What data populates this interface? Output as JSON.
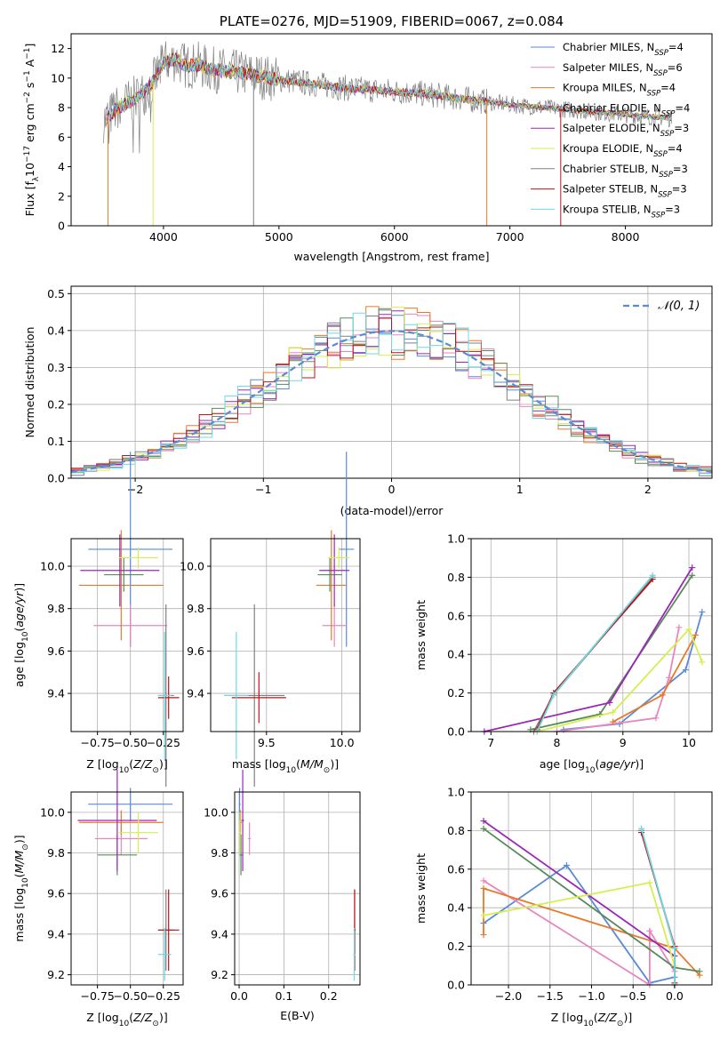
{
  "colors": {
    "blue": "#5b8ad6",
    "pink": "#e886c0",
    "orange": "#e8792b",
    "green": "#5a8a5a",
    "purple": "#9b27b8",
    "lime": "#d6ee4f",
    "gray": "#808080",
    "red": "#b8151b",
    "cyan": "#6fd8e0"
  },
  "chart_data": [
    {
      "type": "line",
      "title": "PLATE=0276, MJD=51909, FIBERID=0067, z=0.084",
      "xlabel": "wavelength [Angstrom, rest frame]",
      "ylabel": "Flux [f_λ 10^-17 erg cm^-2 s^-1 A^-1]",
      "xlim": [
        3200,
        8750
      ],
      "ylim": [
        0,
        13
      ],
      "xticks": [
        4000,
        5000,
        6000,
        7000,
        8000
      ],
      "yticks": [
        0,
        2,
        4,
        6,
        8,
        10,
        12
      ],
      "grid": false,
      "legend_position": "upper-right",
      "legend": [
        {
          "base": "Chabrier MILES, N",
          "n": "4",
          "color_key": "blue"
        },
        {
          "base": "Salpeter MILES, N",
          "n": "6",
          "color_key": "pink"
        },
        {
          "base": "Kroupa MILES, N",
          "n": "4",
          "color_key": "orange"
        },
        {
          "base": "Chabrier ELODIE, N",
          "n": "4",
          "color_key": "green"
        },
        {
          "base": "Salpeter ELODIE, N",
          "n": "3",
          "color_key": "purple"
        },
        {
          "base": "Kroupa ELODIE, N",
          "n": "4",
          "color_key": "lime"
        },
        {
          "base": "Chabrier STELIB, N",
          "n": "3",
          "color_key": "gray"
        },
        {
          "base": "Salpeter STELIB, N",
          "n": "3",
          "color_key": "red"
        },
        {
          "base": "Kroupa STELIB, N",
          "n": "3",
          "color_key": "cyan"
        }
      ],
      "legend_sub": "SSP",
      "continuum": {
        "x": [
          3500,
          3600,
          3700,
          3800,
          3900,
          4000,
          4100,
          4200,
          4300,
          4400,
          4500,
          4700,
          5000,
          5300,
          5600,
          6000,
          6300,
          6600,
          6800,
          7000,
          7300,
          7600,
          7900,
          8200,
          8500
        ],
        "y": [
          7.2,
          8.0,
          8.4,
          8.8,
          9.6,
          11.0,
          11.3,
          10.8,
          10.9,
          10.6,
          10.5,
          10.3,
          9.9,
          9.6,
          9.3,
          9.1,
          8.9,
          8.6,
          8.4,
          8.2,
          8.0,
          7.8,
          7.6,
          7.4,
          7.2
        ]
      }
    },
    {
      "type": "histogram",
      "xlabel": "(data-model)/error",
      "ylabel": "Normed distribution",
      "xlim": [
        -2.5,
        2.5
      ],
      "ylim": [
        0,
        0.52
      ],
      "xticks": [
        -2,
        -1,
        0,
        1,
        2
      ],
      "yticks": [
        0.0,
        0.1,
        0.2,
        0.3,
        0.4,
        0.5
      ],
      "grid": true,
      "legend_position": "upper-right",
      "legend_label": "𝒩(0, 1)",
      "reference_curve": "standard normal, dashed",
      "bins": [
        -2.5,
        2.5,
        50
      ]
    },
    {
      "type": "scatter",
      "xlabel": "Z [log10(Z/Z⊙)]",
      "ylabel": "age  [log10(age/yr)]",
      "xlim": [
        -0.95,
        -0.1
      ],
      "ylim": [
        9.22,
        10.13
      ],
      "xticks": [
        -0.75,
        -0.5,
        -0.25
      ],
      "yticks": [
        9.4,
        9.6,
        9.8,
        10.0
      ],
      "grid": true,
      "points": [
        {
          "c": "blue",
          "x": -0.5,
          "xerr": 0.32,
          "y": 10.08,
          "yerr": 0.46
        },
        {
          "c": "pink",
          "x": -0.5,
          "xerr": 0.28,
          "y": 9.72,
          "yerr": 0.1
        },
        {
          "c": "orange",
          "x": -0.57,
          "xerr": 0.32,
          "y": 9.91,
          "yerr": 0.26
        },
        {
          "c": "green",
          "x": -0.55,
          "xerr": 0.15,
          "y": 9.96,
          "yerr": 0.08
        },
        {
          "c": "purple",
          "x": -0.58,
          "xerr": 0.3,
          "y": 9.98,
          "yerr": 0.17
        },
        {
          "c": "lime",
          "x": -0.44,
          "xerr": 0.15,
          "y": 10.04,
          "yerr": 0.05
        },
        {
          "c": "gray",
          "x": -0.23,
          "xerr": 0.06,
          "y": 9.39,
          "yerr": 0.43
        },
        {
          "c": "red",
          "x": -0.21,
          "xerr": 0.08,
          "y": 9.38,
          "yerr": 0.1
        },
        {
          "c": "cyan",
          "x": -0.24,
          "xerr": 0.05,
          "y": 9.39,
          "yerr": 0.3
        }
      ]
    },
    {
      "type": "scatter",
      "xlabel": "mass [log10(M/M⊙)]",
      "ylabel": "",
      "xlim": [
        9.13,
        10.12
      ],
      "ylim": [
        9.22,
        10.13
      ],
      "xticks": [
        9.5,
        10.0
      ],
      "yticks": [
        9.4,
        9.6,
        9.8,
        10.0
      ],
      "grid": true,
      "points": [
        {
          "c": "blue",
          "x": 10.03,
          "xerr": 0.05,
          "y": 10.08,
          "yerr": 0.46
        },
        {
          "c": "pink",
          "x": 9.95,
          "xerr": 0.08,
          "y": 9.72,
          "yerr": 0.1
        },
        {
          "c": "orange",
          "x": 9.93,
          "xerr": 0.1,
          "y": 9.91,
          "yerr": 0.26
        },
        {
          "c": "green",
          "x": 9.92,
          "xerr": 0.08,
          "y": 9.96,
          "yerr": 0.08
        },
        {
          "c": "purple",
          "x": 9.95,
          "xerr": 0.1,
          "y": 9.98,
          "yerr": 0.17
        },
        {
          "c": "lime",
          "x": 9.98,
          "xerr": 0.07,
          "y": 10.04,
          "yerr": 0.05
        },
        {
          "c": "gray",
          "x": 9.42,
          "xerr": 0.2,
          "y": 9.39,
          "yerr": 0.43
        },
        {
          "c": "red",
          "x": 9.45,
          "xerr": 0.18,
          "y": 9.38,
          "yerr": 0.12
        },
        {
          "c": "cyan",
          "x": 9.3,
          "xerr": 0.08,
          "y": 9.39,
          "yerr": 0.3
        }
      ]
    },
    {
      "type": "line",
      "xlabel": "age  [log10(age/yr)]",
      "ylabel": "mass weight",
      "xlim": [
        6.7,
        10.35
      ],
      "ylim": [
        0,
        1.0
      ],
      "xticks": [
        7,
        8,
        9,
        10
      ],
      "yticks": [
        0.0,
        0.2,
        0.4,
        0.6,
        0.8,
        1.0
      ],
      "grid": true,
      "series": [
        {
          "c": "blue",
          "x": [
            8.1,
            8.95,
            9.95,
            10.2
          ],
          "y": [
            0.01,
            0.04,
            0.32,
            0.62
          ]
        },
        {
          "c": "pink",
          "x": [
            8.0,
            9.5,
            9.7,
            9.85
          ],
          "y": [
            0.0,
            0.07,
            0.28,
            0.54
          ]
        },
        {
          "c": "orange",
          "x": [
            8.85,
            9.6,
            10.1
          ],
          "y": [
            0.05,
            0.19,
            0.5
          ]
        },
        {
          "c": "green",
          "x": [
            7.6,
            8.65,
            10.05
          ],
          "y": [
            0.01,
            0.09,
            0.81
          ]
        },
        {
          "c": "purple",
          "x": [
            6.9,
            8.8,
            10.05
          ],
          "y": [
            0.0,
            0.15,
            0.85
          ]
        },
        {
          "c": "lime",
          "x": [
            7.7,
            8.85,
            10.0,
            10.2
          ],
          "y": [
            0.0,
            0.1,
            0.53,
            0.36
          ]
        },
        {
          "c": "gray",
          "x": [
            7.65,
            7.95,
            9.45
          ],
          "y": [
            0.0,
            0.19,
            0.8
          ]
        },
        {
          "c": "red",
          "x": [
            7.7,
            7.95,
            9.45
          ],
          "y": [
            0.01,
            0.2,
            0.79
          ]
        },
        {
          "c": "cyan",
          "x": [
            7.7,
            7.95,
            9.45
          ],
          "y": [
            0.0,
            0.19,
            0.81
          ]
        }
      ]
    },
    {
      "type": "scatter",
      "xlabel": "Z [log10(Z/Z⊙)]",
      "ylabel": "mass [log10(M/M⊙)]",
      "xlim": [
        -0.95,
        -0.1
      ],
      "ylim": [
        9.15,
        10.1
      ],
      "xticks": [
        -0.75,
        -0.5,
        -0.25
      ],
      "yticks": [
        9.2,
        9.4,
        9.6,
        9.8,
        10.0
      ],
      "grid": true,
      "points": [
        {
          "c": "blue",
          "x": -0.5,
          "xerr": 0.32,
          "y": 10.04,
          "yerr": 0.08
        },
        {
          "c": "pink",
          "x": -0.57,
          "xerr": 0.2,
          "y": 9.87,
          "yerr": 0.08
        },
        {
          "c": "orange",
          "x": -0.57,
          "xerr": 0.32,
          "y": 9.95,
          "yerr": 0.06
        },
        {
          "c": "green",
          "x": -0.6,
          "xerr": 0.15,
          "y": 9.79,
          "yerr": 0.1
        },
        {
          "c": "purple",
          "x": -0.6,
          "xerr": 0.3,
          "y": 9.96,
          "yerr": 0.25
        },
        {
          "c": "lime",
          "x": -0.44,
          "xerr": 0.15,
          "y": 9.9,
          "yerr": 0.1
        },
        {
          "c": "gray",
          "x": -0.23,
          "xerr": 0.06,
          "y": 9.42,
          "yerr": 0.2
        },
        {
          "c": "red",
          "x": -0.21,
          "xerr": 0.08,
          "y": 9.42,
          "yerr": 0.2
        },
        {
          "c": "cyan",
          "x": -0.24,
          "xerr": 0.05,
          "y": 9.3,
          "yerr": 0.13
        }
      ]
    },
    {
      "type": "scatter",
      "xlabel": "E(B-V)",
      "ylabel": "",
      "xlim": [
        -0.01,
        0.27
      ],
      "ylim": [
        9.15,
        10.1
      ],
      "xticks": [
        0.0,
        0.1,
        0.2
      ],
      "yticks": [
        9.2,
        9.4,
        9.6,
        9.8,
        10.0
      ],
      "grid": true,
      "points": [
        {
          "c": "blue",
          "x": 0.001,
          "xerr": 0.002,
          "y": 10.04,
          "yerr": 0.08
        },
        {
          "c": "pink",
          "x": 0.023,
          "xerr": 0.003,
          "y": 9.87,
          "yerr": 0.08
        },
        {
          "c": "orange",
          "x": 0.003,
          "xerr": 0.003,
          "y": 9.95,
          "yerr": 0.06
        },
        {
          "c": "green",
          "x": 0.004,
          "xerr": 0.003,
          "y": 9.79,
          "yerr": 0.1
        },
        {
          "c": "purple",
          "x": 0.008,
          "xerr": 0.003,
          "y": 9.96,
          "yerr": 0.25
        },
        {
          "c": "lime",
          "x": 0.002,
          "xerr": 0.002,
          "y": 9.9,
          "yerr": 0.1
        },
        {
          "c": "gray",
          "x": 0.258,
          "xerr": 0.002,
          "y": 9.42,
          "yerr": 0.2
        },
        {
          "c": "red",
          "x": 0.258,
          "xerr": 0.002,
          "y": 9.42,
          "yerr": 0.2
        },
        {
          "c": "cyan",
          "x": 0.257,
          "xerr": 0.002,
          "y": 9.3,
          "yerr": 0.13
        }
      ]
    },
    {
      "type": "line",
      "xlabel": "Z [log10(Z/Z⊙)]",
      "ylabel": "mass weight",
      "xlim": [
        -2.45,
        0.45
      ],
      "ylim": [
        0,
        1.0
      ],
      "xticks": [
        -2.0,
        -1.5,
        -1.0,
        -0.5,
        0.0
      ],
      "yticks": [
        0.0,
        0.2,
        0.4,
        0.6,
        0.8,
        1.0
      ],
      "grid": true,
      "series": [
        {
          "c": "blue",
          "x": [
            -2.3,
            -1.3,
            -0.3,
            0.0
          ],
          "y": [
            0.32,
            0.62,
            0.01,
            0.04
          ]
        },
        {
          "c": "pink",
          "x": [
            -2.3,
            -0.3,
            -0.3,
            0.0
          ],
          "y": [
            0.54,
            0.0,
            0.28,
            0.07
          ]
        },
        {
          "c": "orange",
          "x": [
            -2.3,
            -2.3,
            0.0,
            0.3
          ],
          "y": [
            0.26,
            0.5,
            0.19,
            0.05
          ]
        },
        {
          "c": "green",
          "x": [
            -2.3,
            0.0,
            0.3
          ],
          "y": [
            0.81,
            0.09,
            0.07
          ]
        },
        {
          "c": "purple",
          "x": [
            -2.3,
            0.0
          ],
          "y": [
            0.85,
            0.15
          ]
        },
        {
          "c": "lime",
          "x": [
            -2.3,
            -0.3,
            0.0
          ],
          "y": [
            0.36,
            0.53,
            0.1
          ]
        },
        {
          "c": "gray",
          "x": [
            -0.4,
            0.0,
            0.0
          ],
          "y": [
            0.8,
            0.19,
            0.0
          ]
        },
        {
          "c": "red",
          "x": [
            -0.4,
            0.0,
            0.0
          ],
          "y": [
            0.79,
            0.2,
            0.01
          ]
        },
        {
          "c": "cyan",
          "x": [
            -0.4,
            0.0,
            0.0
          ],
          "y": [
            0.81,
            0.19,
            0.0
          ]
        }
      ]
    }
  ]
}
